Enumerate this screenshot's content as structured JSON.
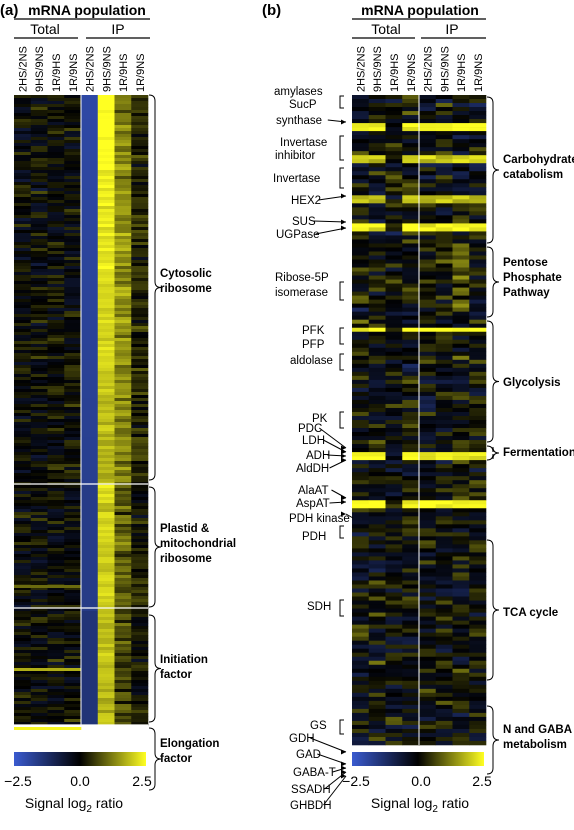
{
  "chart_data": [
    {
      "type": "heatmap",
      "panel": "(a)",
      "header": "mRNA population",
      "groups": [
        "Total",
        "IP"
      ],
      "columns": [
        "2HS/2NS",
        "9HS/9NS",
        "1R/9HS",
        "1R/9NS",
        "2HS/2NS",
        "9HS/9NS",
        "1R/9HS",
        "1R/9NS"
      ],
      "clusters": [
        {
          "label": "Cytosolic ribosome"
        },
        {
          "label": "Plastid & mitochondrial ribosome"
        },
        {
          "label": "Initiation factor"
        },
        {
          "label": "Elongation factor"
        }
      ]
    },
    {
      "type": "heatmap",
      "panel": "(b)",
      "header": "mRNA population",
      "groups": [
        "Total",
        "IP"
      ],
      "columns": [
        "2HS/2NS",
        "9HS/9NS",
        "1R/9HS",
        "1R/9NS",
        "2HS/2NS",
        "9HS/9NS",
        "1R/9HS",
        "1R/9NS"
      ],
      "categories": [
        {
          "label": "Carbohydrate catabolism"
        },
        {
          "label": "Pentose Phosphate Pathway"
        },
        {
          "label": "Glycolysis"
        },
        {
          "label": "Fermentation"
        },
        {
          "label": "TCA cycle"
        },
        {
          "label": "N and GABA metabolism"
        }
      ],
      "genes": [
        "amylases",
        "SucP",
        "synthase",
        "Invertase",
        "inhibitor",
        "Invertase",
        "HEX2",
        "SUS",
        "UGPase",
        "Ribose-5P",
        "isomerase",
        "PFK",
        "PFP",
        "aldolase",
        "PK",
        "PDC",
        "LDH",
        "ADH",
        "AldDH",
        "AlaAT",
        "AspAT",
        "PDH kinase",
        "PDH",
        "SDH",
        "GS",
        "GDH",
        "GAD",
        "GABA-T",
        "SSADH",
        "GHBDH"
      ]
    }
  ],
  "colorbar": {
    "title": "Signal log",
    "subscript": "2",
    "title_suffix": " ratio",
    "ticks": [
      "−2.5",
      "0.0",
      "2.5"
    ],
    "range": [
      -2.5,
      2.5
    ],
    "colors": [
      "#3a5bd0",
      "#000000",
      "#ffff22"
    ]
  }
}
